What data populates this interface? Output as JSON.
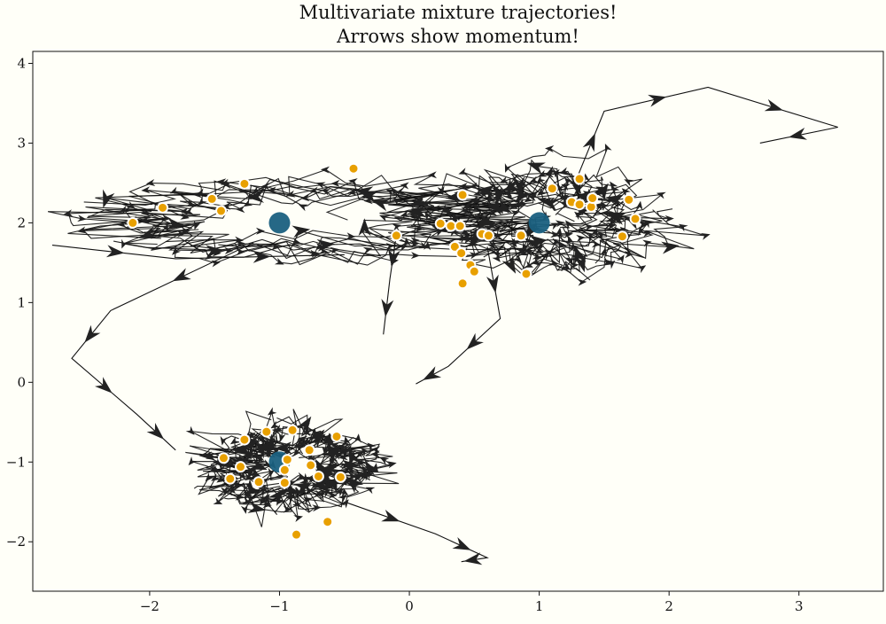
{
  "chart_data": {
    "type": "scatter",
    "title": [
      "Multivariate mixture trajectories!",
      "Arrows show momentum!"
    ],
    "xlabel": "",
    "ylabel": "",
    "xlim": [
      -2.9,
      3.65
    ],
    "ylim": [
      -2.62,
      4.15
    ],
    "xticks": [
      -2,
      -1,
      0,
      1,
      2,
      3
    ],
    "yticks": [
      -2,
      -1,
      0,
      1,
      2,
      3,
      4
    ],
    "xtick_labels": [
      "−2",
      "−1",
      "0",
      "1",
      "2",
      "3"
    ],
    "ytick_labels": [
      "−2",
      "−1",
      "0",
      "1",
      "2",
      "3",
      "4"
    ],
    "grid": false,
    "legend": "none",
    "colors": {
      "background": "#fffff8",
      "trajectory": "#111111",
      "samples": "#e8a000",
      "sample_edge": "#ffffff",
      "modes": "#1a6080"
    },
    "series": [
      {
        "role": "mixture-modes",
        "points": [
          [
            -1,
            2
          ],
          [
            1,
            2
          ],
          [
            -1,
            -1
          ]
        ]
      },
      {
        "role": "samples",
        "points": [
          [
            -0.43,
            2.68
          ],
          [
            -1.27,
            2.49
          ],
          [
            -1.52,
            2.3
          ],
          [
            -1.45,
            2.15
          ],
          [
            -1.9,
            2.19
          ],
          [
            -2.13,
            2.0
          ],
          [
            -0.1,
            1.84
          ],
          [
            0.24,
            1.99
          ],
          [
            0.32,
            1.96
          ],
          [
            0.39,
            1.96
          ],
          [
            0.41,
            2.35
          ],
          [
            0.35,
            1.7
          ],
          [
            0.4,
            1.62
          ],
          [
            0.47,
            1.47
          ],
          [
            0.5,
            1.39
          ],
          [
            0.41,
            1.24
          ],
          [
            0.56,
            1.86
          ],
          [
            0.61,
            1.84
          ],
          [
            0.86,
            1.84
          ],
          [
            0.9,
            1.36
          ],
          [
            1.1,
            2.43
          ],
          [
            1.25,
            2.26
          ],
          [
            1.31,
            2.23
          ],
          [
            1.31,
            2.55
          ],
          [
            1.4,
            2.2
          ],
          [
            1.41,
            2.31
          ],
          [
            1.64,
            1.83
          ],
          [
            1.69,
            2.29
          ],
          [
            1.74,
            2.05
          ],
          [
            -1.1,
            -0.62
          ],
          [
            -0.9,
            -0.6
          ],
          [
            -1.27,
            -0.72
          ],
          [
            -0.56,
            -0.68
          ],
          [
            -1.43,
            -0.95
          ],
          [
            -1.3,
            -1.06
          ],
          [
            -1.38,
            -1.21
          ],
          [
            -1.16,
            -1.25
          ],
          [
            -0.94,
            -0.97
          ],
          [
            -0.96,
            -1.1
          ],
          [
            -0.77,
            -0.85
          ],
          [
            -0.76,
            -1.04
          ],
          [
            -0.7,
            -1.18
          ],
          [
            -0.53,
            -1.19
          ],
          [
            -0.96,
            -1.26
          ],
          [
            -0.63,
            -1.75
          ],
          [
            -0.87,
            -1.91
          ]
        ]
      }
    ]
  }
}
